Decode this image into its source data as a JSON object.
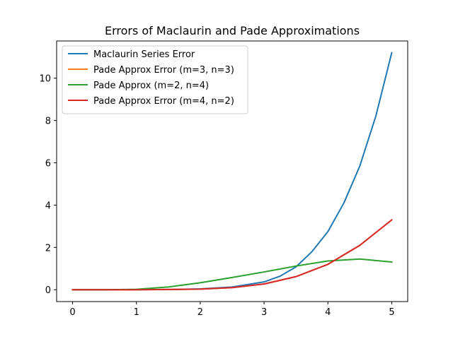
{
  "chart_data": {
    "type": "line",
    "title": "Errors of Maclaurin and Pade Approximations",
    "xlabel": "",
    "ylabel": "",
    "xlim": [
      -0.25,
      5.25
    ],
    "ylim": [
      -0.56,
      11.76
    ],
    "xticks": [
      0,
      1,
      2,
      3,
      4,
      5
    ],
    "yticks": [
      0,
      2,
      4,
      6,
      8,
      10
    ],
    "grid": false,
    "legend_position": "top-left",
    "series": [
      {
        "name": "Maclaurin Series Error",
        "color": "#1f77b4",
        "x": [
          0,
          0.5,
          1,
          1.5,
          2,
          2.5,
          3,
          3.25,
          3.5,
          3.75,
          4,
          4.25,
          4.5,
          4.75,
          5
        ],
        "y": [
          0,
          0,
          0.005,
          0.01,
          0.04,
          0.13,
          0.37,
          0.64,
          1.08,
          1.8,
          2.75,
          4.1,
          5.85,
          8.2,
          11.2
        ]
      },
      {
        "name": "Pade Approx Error (m=3, n=3)",
        "color": "#ff7f0e",
        "x": [
          0,
          0.5,
          1,
          1.5,
          2,
          2.5,
          3,
          3.5,
          4,
          4.5,
          5
        ],
        "y": [
          0,
          0,
          0,
          0.01,
          0.03,
          0.1,
          0.27,
          0.62,
          1.2,
          2.1,
          3.3
        ]
      },
      {
        "name": "Pade Approx (m=2, n=4)",
        "color": "#2ca02c",
        "x": [
          0,
          0.5,
          1,
          1.5,
          2,
          2.5,
          3,
          3.5,
          4,
          4.5,
          5
        ],
        "y": [
          0,
          0,
          0.02,
          0.13,
          0.33,
          0.58,
          0.84,
          1.12,
          1.36,
          1.45,
          1.31
        ]
      },
      {
        "name": "Pade Approx Error (m=4, n=2)",
        "color": "#d62728",
        "x": [
          0,
          0.5,
          1,
          1.5,
          2,
          2.5,
          3,
          3.5,
          4,
          4.5,
          5
        ],
        "y": [
          0,
          0,
          0,
          0.01,
          0.03,
          0.1,
          0.27,
          0.62,
          1.2,
          2.1,
          3.3
        ]
      }
    ]
  }
}
